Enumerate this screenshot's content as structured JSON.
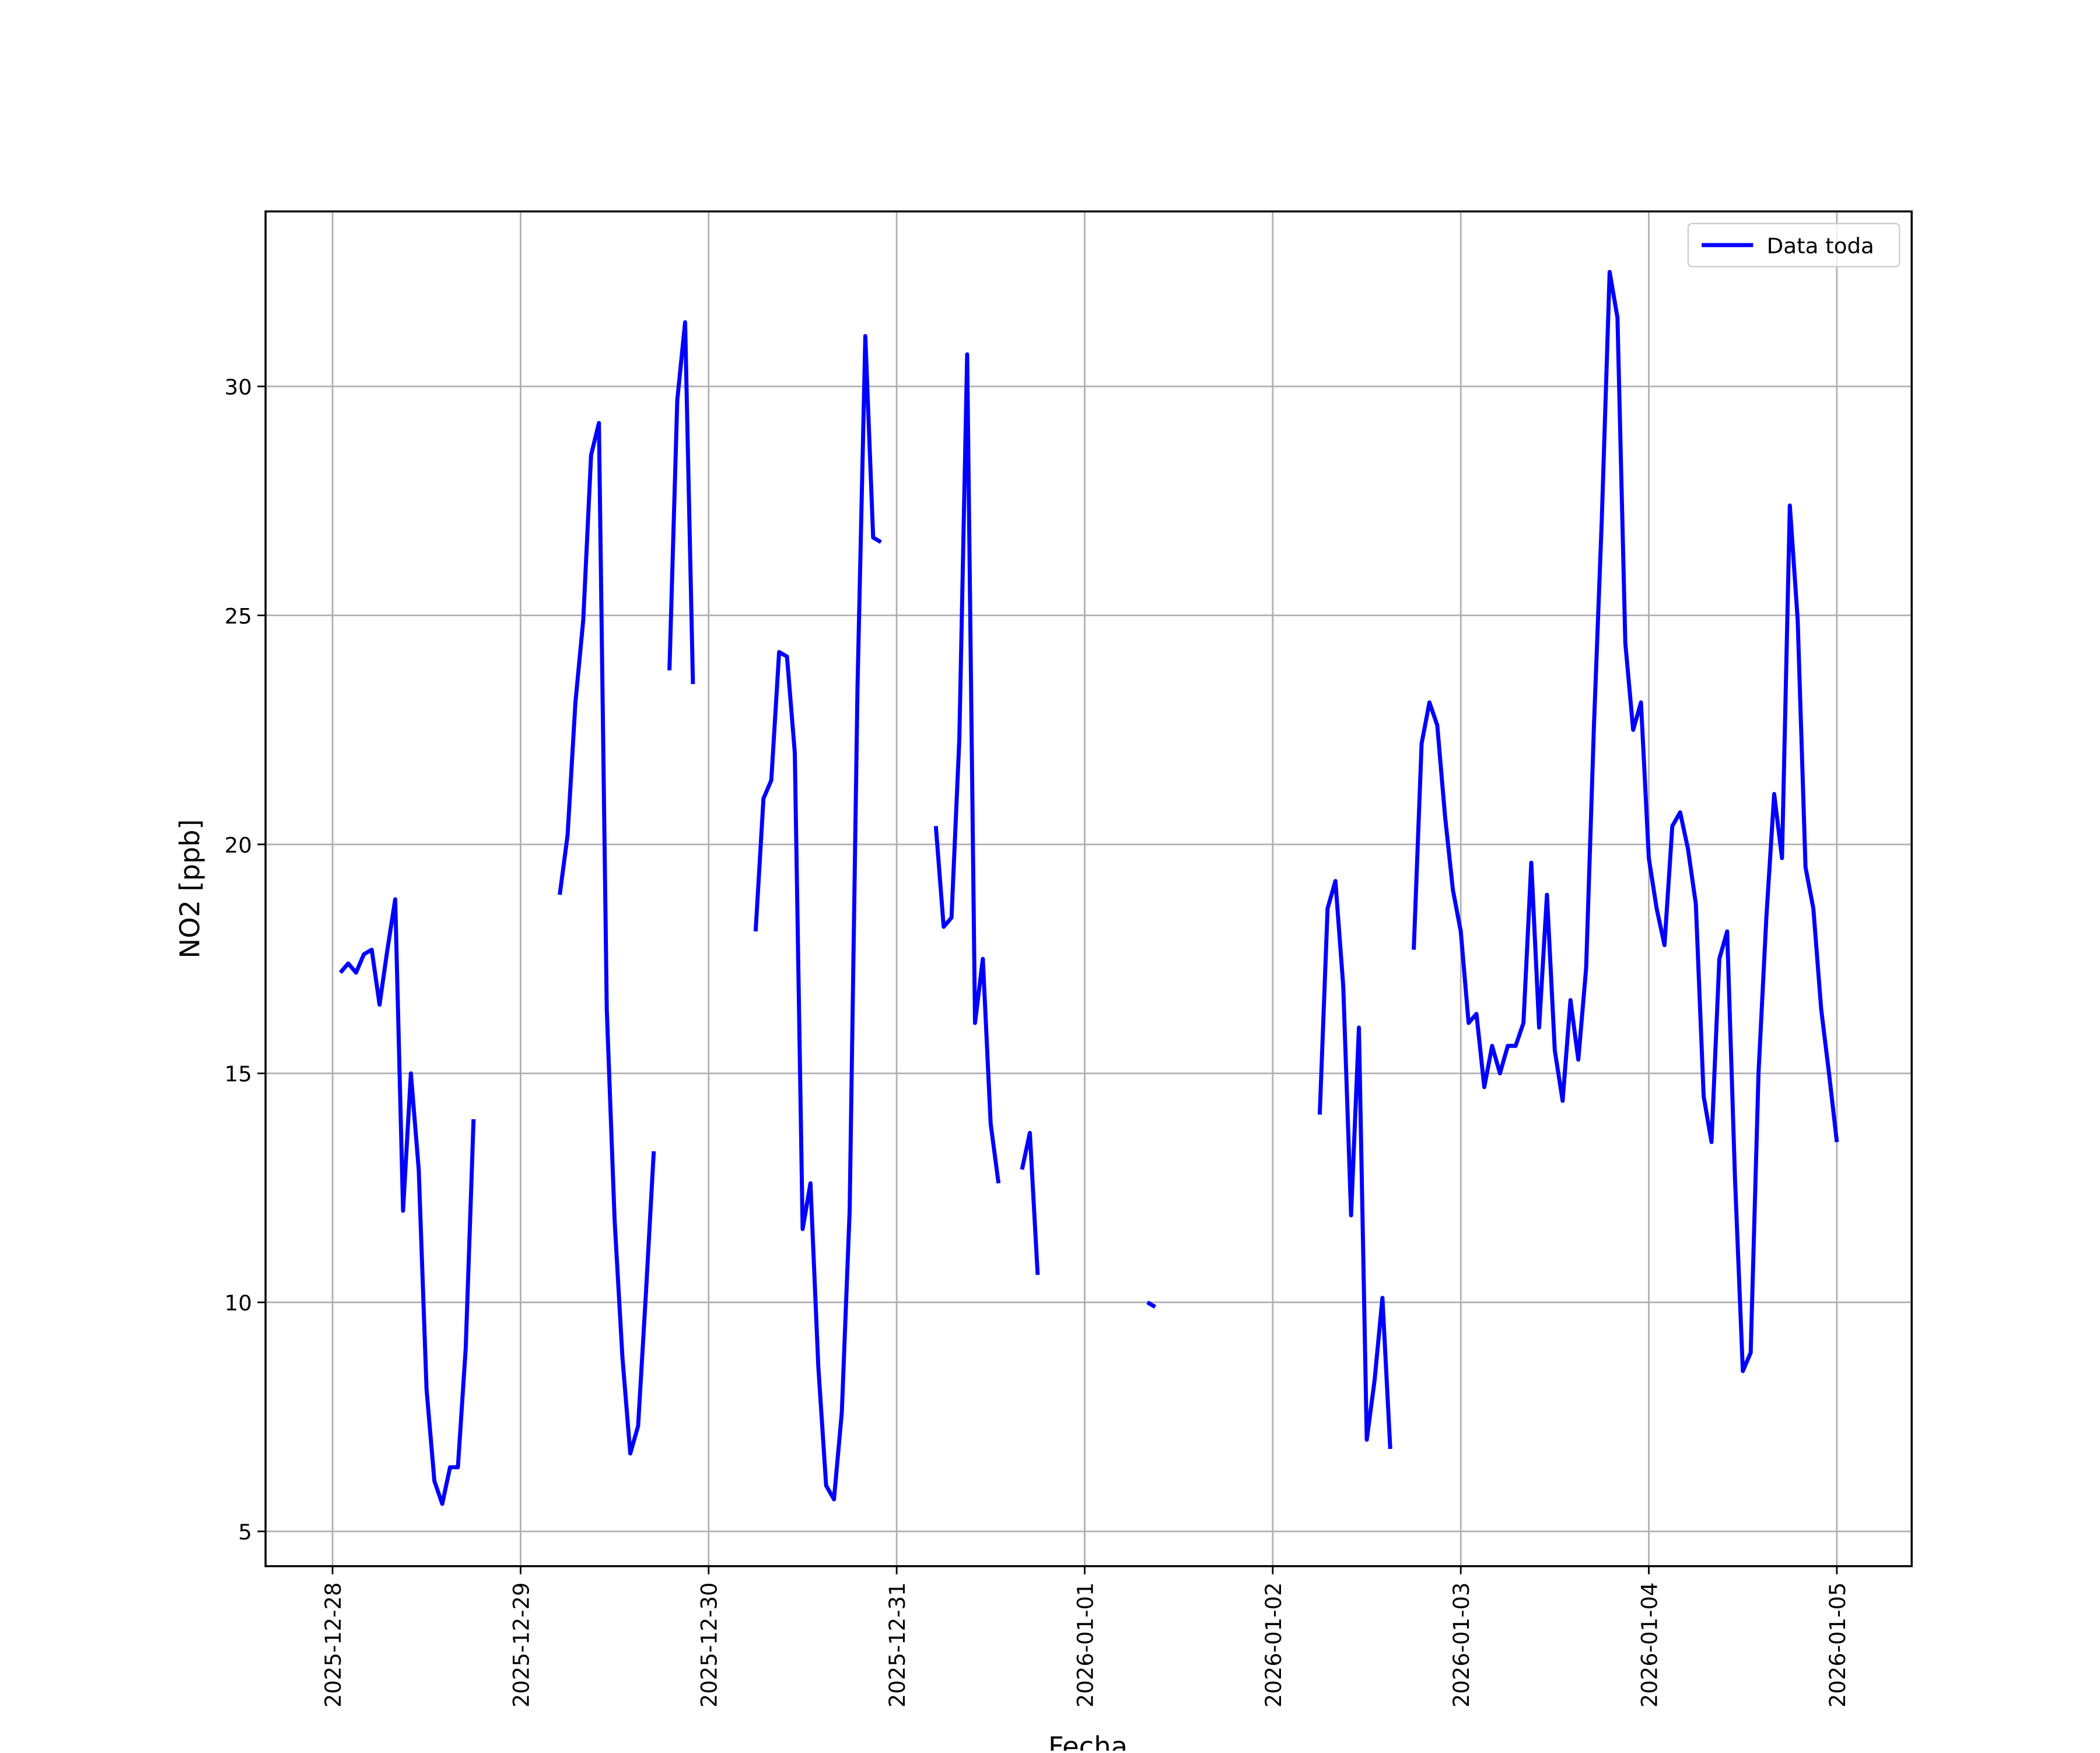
{
  "chart_data": {
    "type": "line",
    "x_label": "Fecha",
    "y_label": "NO2 [ppb]",
    "x": [
      "2025-12-28 01:00",
      "2025-12-28 02:00",
      "2025-12-28 03:00",
      "2025-12-28 04:00",
      "2025-12-28 05:00",
      "2025-12-28 06:00",
      "2025-12-28 07:00",
      "2025-12-28 08:00",
      "2025-12-28 09:00",
      "2025-12-28 10:00",
      "2025-12-28 11:00",
      "2025-12-28 12:00",
      "2025-12-28 13:00",
      "2025-12-28 14:00",
      "2025-12-28 15:00",
      "2025-12-28 16:00",
      "2025-12-28 17:00",
      "2025-12-28 18:00",
      "2025-12-28 19:00",
      "2025-12-28 20:00",
      "2025-12-28 21:00",
      "2025-12-28 22:00",
      "2025-12-28 23:00",
      "2025-12-29 00:00",
      "2025-12-29 01:00",
      "2025-12-29 02:00",
      "2025-12-29 03:00",
      "2025-12-29 04:00",
      "2025-12-29 05:00",
      "2025-12-29 06:00",
      "2025-12-29 07:00",
      "2025-12-29 08:00",
      "2025-12-29 09:00",
      "2025-12-29 10:00",
      "2025-12-29 11:00",
      "2025-12-29 12:00",
      "2025-12-29 13:00",
      "2025-12-29 14:00",
      "2025-12-29 15:00",
      "2025-12-29 16:00",
      "2025-12-29 17:00",
      "2025-12-29 18:00",
      "2025-12-29 19:00",
      "2025-12-29 20:00",
      "2025-12-29 21:00",
      "2025-12-29 22:00",
      "2025-12-29 23:00",
      "2025-12-30 00:00",
      "2025-12-30 01:00",
      "2025-12-30 02:00",
      "2025-12-30 03:00",
      "2025-12-30 04:00",
      "2025-12-30 05:00",
      "2025-12-30 06:00",
      "2025-12-30 07:00",
      "2025-12-30 08:00",
      "2025-12-30 09:00",
      "2025-12-30 10:00",
      "2025-12-30 11:00",
      "2025-12-30 12:00",
      "2025-12-30 13:00",
      "2025-12-30 14:00",
      "2025-12-30 15:00",
      "2025-12-30 16:00",
      "2025-12-30 17:00",
      "2025-12-30 18:00",
      "2025-12-30 19:00",
      "2025-12-30 20:00",
      "2025-12-30 21:00",
      "2025-12-30 22:00",
      "2025-12-30 23:00",
      "2025-12-31 00:00",
      "2025-12-31 01:00",
      "2025-12-31 02:00",
      "2025-12-31 03:00",
      "2025-12-31 04:00",
      "2025-12-31 05:00",
      "2025-12-31 06:00",
      "2025-12-31 07:00",
      "2025-12-31 08:00",
      "2025-12-31 09:00",
      "2025-12-31 10:00",
      "2025-12-31 11:00",
      "2025-12-31 12:00",
      "2025-12-31 13:00",
      "2025-12-31 14:00",
      "2025-12-31 15:00",
      "2025-12-31 16:00",
      "2025-12-31 17:00",
      "2025-12-31 18:00",
      "2025-12-31 19:00",
      "2025-12-31 20:00",
      "2025-12-31 21:00",
      "2025-12-31 22:00",
      "2025-12-31 23:00",
      "2026-01-01 00:00",
      "2026-01-01 01:00",
      "2026-01-01 02:00",
      "2026-01-01 03:00",
      "2026-01-01 04:00",
      "2026-01-01 05:00",
      "2026-01-01 06:00",
      "2026-01-01 07:00",
      "2026-01-01 08:00",
      "2026-01-01 09:00",
      "2026-01-01 10:00",
      "2026-01-01 11:00",
      "2026-01-01 12:00",
      "2026-01-01 13:00",
      "2026-01-01 14:00",
      "2026-01-01 15:00",
      "2026-01-01 16:00",
      "2026-01-01 17:00",
      "2026-01-01 18:00",
      "2026-01-01 19:00",
      "2026-01-01 20:00",
      "2026-01-01 21:00",
      "2026-01-01 22:00",
      "2026-01-01 23:00",
      "2026-01-02 00:00",
      "2026-01-02 01:00",
      "2026-01-02 02:00",
      "2026-01-02 03:00",
      "2026-01-02 04:00",
      "2026-01-02 05:00",
      "2026-01-02 06:00",
      "2026-01-02 07:00",
      "2026-01-02 08:00",
      "2026-01-02 09:00",
      "2026-01-02 10:00",
      "2026-01-02 11:00",
      "2026-01-02 12:00",
      "2026-01-02 13:00",
      "2026-01-02 14:00",
      "2026-01-02 15:00",
      "2026-01-02 16:00",
      "2026-01-02 17:00",
      "2026-01-02 18:00",
      "2026-01-02 19:00",
      "2026-01-02 20:00",
      "2026-01-02 21:00",
      "2026-01-02 22:00",
      "2026-01-02 23:00",
      "2026-01-03 00:00",
      "2026-01-03 01:00",
      "2026-01-03 02:00",
      "2026-01-03 03:00",
      "2026-01-03 04:00",
      "2026-01-03 05:00",
      "2026-01-03 06:00",
      "2026-01-03 07:00",
      "2026-01-03 08:00",
      "2026-01-03 09:00",
      "2026-01-03 10:00",
      "2026-01-03 11:00",
      "2026-01-03 12:00",
      "2026-01-03 13:00",
      "2026-01-03 14:00",
      "2026-01-03 15:00",
      "2026-01-03 16:00",
      "2026-01-03 17:00",
      "2026-01-03 18:00",
      "2026-01-03 19:00",
      "2026-01-03 20:00",
      "2026-01-03 21:00",
      "2026-01-03 22:00",
      "2026-01-03 23:00",
      "2026-01-04 00:00",
      "2026-01-04 01:00",
      "2026-01-04 02:00",
      "2026-01-04 03:00",
      "2026-01-04 04:00",
      "2026-01-04 05:00",
      "2026-01-04 06:00",
      "2026-01-04 07:00",
      "2026-01-04 08:00",
      "2026-01-04 09:00",
      "2026-01-04 10:00",
      "2026-01-04 11:00",
      "2026-01-04 12:00",
      "2026-01-04 13:00",
      "2026-01-04 14:00",
      "2026-01-04 15:00",
      "2026-01-04 16:00",
      "2026-01-04 17:00",
      "2026-01-04 18:00",
      "2026-01-04 19:00",
      "2026-01-04 20:00",
      "2026-01-04 21:00",
      "2026-01-04 22:00",
      "2026-01-04 23:00",
      "2026-01-05 00:00"
    ],
    "series": [
      {
        "name": "Data toda",
        "color": "#0000ff",
        "values": [
          17.2,
          17.4,
          17.2,
          17.6,
          17.7,
          16.5,
          17.7,
          18.8,
          12.0,
          15.0,
          12.9,
          8.1,
          6.1,
          5.6,
          6.4,
          6.4,
          9.0,
          14.0,
          null,
          null,
          null,
          null,
          null,
          null,
          null,
          null,
          null,
          null,
          18.9,
          20.2,
          23.1,
          24.9,
          28.5,
          29.2,
          16.4,
          11.8,
          8.8,
          6.7,
          7.3,
          10.2,
          13.3,
          null,
          23.8,
          29.7,
          31.4,
          23.5,
          null,
          null,
          null,
          null,
          null,
          null,
          null,
          18.1,
          21.0,
          21.4,
          24.2,
          24.1,
          22.0,
          11.6,
          12.6,
          8.6,
          6.0,
          5.7,
          7.6,
          12.0,
          23.4,
          31.1,
          26.7,
          26.6,
          null,
          null,
          null,
          null,
          null,
          null,
          20.4,
          18.2,
          18.4,
          22.3,
          30.7,
          16.1,
          17.5,
          13.9,
          12.6,
          null,
          null,
          12.9,
          13.7,
          10.6,
          null,
          null,
          null,
          null,
          null,
          null,
          null,
          null,
          null,
          null,
          null,
          null,
          null,
          10.0,
          9.9,
          null,
          null,
          null,
          null,
          null,
          null,
          null,
          null,
          null,
          null,
          null,
          null,
          null,
          null,
          null,
          null,
          null,
          null,
          null,
          null,
          14.1,
          18.6,
          19.2,
          16.9,
          11.9,
          16.0,
          7.0,
          8.3,
          10.1,
          6.8,
          null,
          null,
          17.7,
          22.2,
          23.1,
          22.6,
          20.6,
          19.0,
          18.1,
          16.1,
          16.3,
          14.7,
          15.6,
          15.0,
          15.6,
          15.6,
          16.1,
          19.6,
          16.0,
          18.9,
          15.5,
          14.4,
          16.6,
          15.3,
          17.3,
          22.6,
          27.1,
          32.5,
          31.5,
          24.4,
          22.5,
          23.1,
          19.7,
          18.6,
          17.8,
          20.4,
          20.7,
          19.9,
          18.7,
          14.5,
          13.5,
          17.5,
          18.1,
          12.7,
          8.5,
          8.9,
          15.0,
          18.4,
          21.1,
          19.7,
          27.4,
          24.9,
          19.5,
          18.6,
          16.4,
          15.0,
          13.5
        ]
      }
    ],
    "xlim": [
      "2025-12-27 15:27",
      "2026-01-05 09:33"
    ],
    "xticks": [
      "2025-12-28",
      "2025-12-29",
      "2025-12-30",
      "2025-12-31",
      "2026-01-01",
      "2026-01-02",
      "2026-01-03",
      "2026-01-04",
      "2026-01-05"
    ],
    "ylim": [
      4.24,
      33.82
    ],
    "yticks": [
      5,
      10,
      15,
      20,
      25,
      30
    ],
    "grid": true,
    "legend": "upper right"
  }
}
